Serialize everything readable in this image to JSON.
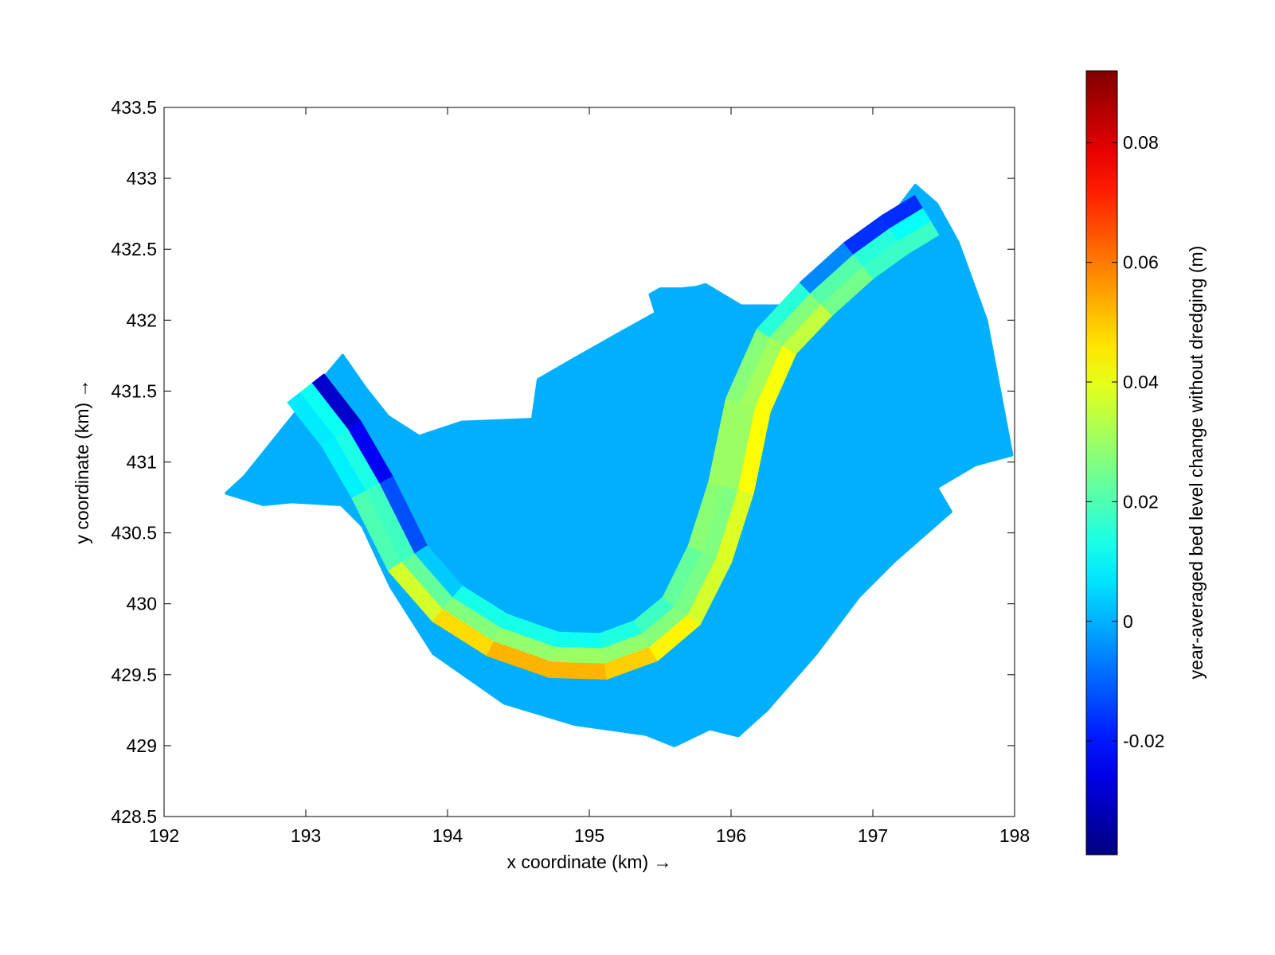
{
  "chart_data": {
    "type": "heatmap",
    "title": "",
    "xlabel": "x coordinate (km) →",
    "ylabel": "y coordinate (km) →",
    "xlim": [
      192,
      198
    ],
    "ylim": [
      428.5,
      433.5
    ],
    "xticks": [
      "192",
      "193",
      "194",
      "195",
      "196",
      "197",
      "198"
    ],
    "yticks": [
      "433.5",
      "433",
      "432.5",
      "432",
      "431.5",
      "431",
      "430.5",
      "430",
      "429.5",
      "429",
      "428.5"
    ],
    "grid": false,
    "colorbar": {
      "label": "year-averaged bed level change without dredging (m)",
      "colormap": "jet",
      "range": [
        -0.039,
        0.092
      ],
      "tick_values": [
        0.08,
        0.06,
        0.04,
        0.02,
        0,
        -0.02
      ],
      "tick_labels": [
        "0.08",
        "0.06",
        "0.04",
        "0.02",
        "0",
        "-0.02"
      ]
    },
    "domain_value": 0,
    "domain_outline": [
      [
        192.44,
        430.78
      ],
      [
        192.57,
        430.9
      ],
      [
        193.1,
        431.56
      ],
      [
        193.26,
        431.75
      ],
      [
        193.42,
        431.52
      ],
      [
        193.58,
        431.32
      ],
      [
        193.8,
        431.18
      ],
      [
        194.1,
        431.28
      ],
      [
        194.6,
        431.3
      ],
      [
        194.64,
        431.58
      ],
      [
        194.9,
        431.73
      ],
      [
        195.2,
        431.9
      ],
      [
        195.47,
        432.05
      ],
      [
        195.43,
        432.18
      ],
      [
        195.5,
        432.22
      ],
      [
        195.65,
        432.22
      ],
      [
        195.75,
        432.23
      ],
      [
        195.82,
        432.25
      ],
      [
        196.07,
        432.1
      ],
      [
        196.35,
        432.1
      ],
      [
        196.6,
        432.35
      ],
      [
        196.8,
        432.46
      ],
      [
        197.0,
        432.67
      ],
      [
        197.17,
        432.78
      ],
      [
        197.3,
        432.95
      ],
      [
        197.45,
        432.82
      ],
      [
        197.6,
        432.55
      ],
      [
        197.8,
        432.0
      ],
      [
        197.98,
        431.05
      ],
      [
        197.72,
        430.98
      ],
      [
        197.45,
        430.82
      ],
      [
        197.55,
        430.65
      ],
      [
        197.15,
        430.3
      ],
      [
        196.9,
        430.05
      ],
      [
        196.6,
        429.65
      ],
      [
        196.25,
        429.25
      ],
      [
        196.05,
        429.07
      ],
      [
        195.85,
        429.12
      ],
      [
        195.6,
        429.0
      ],
      [
        195.4,
        429.08
      ],
      [
        194.9,
        429.15
      ],
      [
        194.4,
        429.3
      ],
      [
        193.9,
        429.65
      ],
      [
        193.6,
        430.12
      ],
      [
        193.4,
        430.55
      ],
      [
        193.25,
        430.7
      ],
      [
        192.9,
        430.72
      ],
      [
        192.7,
        430.7
      ],
      [
        192.44,
        430.78
      ]
    ],
    "channel_centerline": [
      [
        193.0,
        431.52
      ],
      [
        193.25,
        431.2
      ],
      [
        193.47,
        430.82
      ],
      [
        193.72,
        430.32
      ],
      [
        194.0,
        430.0
      ],
      [
        194.35,
        429.78
      ],
      [
        194.75,
        429.64
      ],
      [
        195.1,
        429.63
      ],
      [
        195.4,
        429.74
      ],
      [
        195.65,
        429.95
      ],
      [
        195.85,
        430.35
      ],
      [
        196.0,
        430.82
      ],
      [
        196.12,
        431.4
      ],
      [
        196.32,
        431.85
      ],
      [
        196.6,
        432.15
      ],
      [
        196.9,
        432.42
      ],
      [
        197.15,
        432.6
      ],
      [
        197.38,
        432.74
      ]
    ],
    "channel_values": [
      0.012,
      0.011,
      0.016,
      0.02,
      0.026,
      0.028,
      0.03,
      0.03,
      0.028,
      0.026,
      0.025,
      0.028,
      0.032,
      0.03,
      0.024,
      0.018,
      0.012,
      0.01
    ],
    "inner_bank_values": [
      -0.03,
      -0.028,
      -0.02,
      -0.005,
      0.012,
      0.014,
      0.012,
      0.012,
      0.016,
      0.02,
      0.026,
      0.03,
      0.03,
      0.025,
      0.005,
      -0.015,
      -0.018,
      -0.016
    ],
    "outer_bank_values": [
      0.008,
      0.007,
      0.01,
      0.03,
      0.045,
      0.05,
      0.055,
      0.05,
      0.048,
      0.04,
      0.035,
      0.042,
      0.044,
      0.04,
      0.03,
      0.02,
      0.015,
      0.02
    ]
  }
}
